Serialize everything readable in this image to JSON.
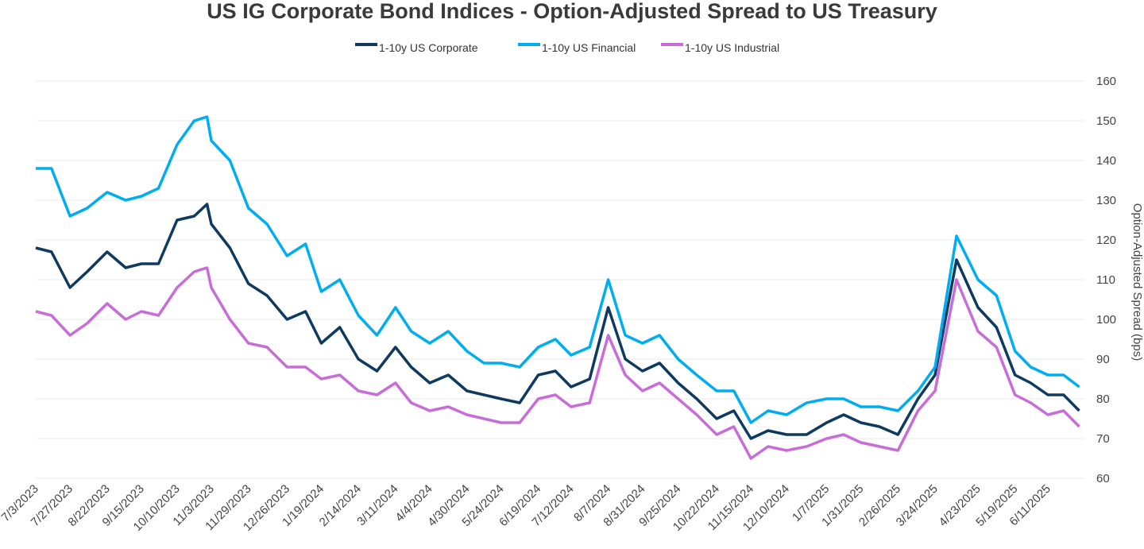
{
  "chart_data": {
    "type": "line",
    "title": "US IG Corporate Bond Indices - Option-Adjusted Spread to US Treasury",
    "xlabel": "",
    "ylabel": "Option-Adjusted Spread  (bps)",
    "ylim": [
      60,
      160
    ],
    "yticks": [
      60,
      70,
      80,
      90,
      100,
      110,
      120,
      130,
      140,
      150,
      160
    ],
    "y_axis_side": "right",
    "grid": true,
    "legend_position": "top",
    "xtick_labels": [
      "7/3/2023",
      "7/27/2023",
      "8/22/2023",
      "9/15/2023",
      "10/10/2023",
      "11/3/2023",
      "11/29/2023",
      "12/26/2023",
      "1/19/2024",
      "2/14/2024",
      "3/11/2024",
      "4/4/2024",
      "4/30/2024",
      "5/24/2024",
      "6/19/2024",
      "7/12/2024",
      "8/7/2024",
      "8/31/2024",
      "9/25/2024",
      "10/22/2024",
      "11/15/2024",
      "12/10/2024",
      "1/7/2025",
      "1/31/2025",
      "2/26/2025",
      "3/24/2025",
      "4/23/2025",
      "5/19/2025",
      "6/11/2025"
    ],
    "x": [
      "7/3/2023",
      "7/14/2023",
      "7/27/2023",
      "8/8/2023",
      "8/22/2023",
      "9/4/2023",
      "9/15/2023",
      "9/27/2023",
      "10/10/2023",
      "10/22/2023",
      "10/31/2023",
      "11/3/2023",
      "11/16/2023",
      "11/29/2023",
      "12/12/2023",
      "12/26/2023",
      "1/8/2024",
      "1/19/2024",
      "2/1/2024",
      "2/14/2024",
      "2/27/2024",
      "3/11/2024",
      "3/22/2024",
      "4/4/2024",
      "4/17/2024",
      "4/30/2024",
      "5/12/2024",
      "5/24/2024",
      "6/6/2024",
      "6/19/2024",
      "7/1/2024",
      "7/12/2024",
      "7/25/2024",
      "8/7/2024",
      "8/19/2024",
      "8/31/2024",
      "9/12/2024",
      "9/25/2024",
      "10/8/2024",
      "10/22/2024",
      "11/3/2024",
      "11/15/2024",
      "11/27/2024",
      "12/10/2024",
      "12/24/2024",
      "1/7/2025",
      "1/19/2025",
      "1/31/2025",
      "2/13/2025",
      "2/26/2025",
      "3/12/2025",
      "3/24/2025",
      "4/8/2025",
      "4/23/2025",
      "5/6/2025",
      "5/19/2025",
      "5/30/2025",
      "6/11/2025",
      "6/22/2025",
      "7/3/2025"
    ],
    "series": [
      {
        "name": "1-10y US Corporate",
        "color": "#0e3a60",
        "values": [
          118,
          117,
          108,
          112,
          117,
          113,
          114,
          114,
          125,
          126,
          129,
          124,
          118,
          109,
          106,
          100,
          102,
          94,
          98,
          90,
          87,
          93,
          88,
          84,
          86,
          82,
          81,
          80,
          79,
          86,
          87,
          83,
          85,
          103,
          90,
          87,
          89,
          84,
          80,
          75,
          77,
          70,
          72,
          71,
          71,
          74,
          76,
          74,
          73,
          71,
          80,
          86,
          115,
          103,
          98,
          86,
          84,
          81,
          81,
          77
        ]
      },
      {
        "name": "1-10y US Financial",
        "color": "#00aeef",
        "values": [
          138,
          138,
          126,
          128,
          132,
          130,
          131,
          133,
          144,
          150,
          151,
          145,
          140,
          128,
          124,
          116,
          119,
          107,
          110,
          101,
          96,
          103,
          97,
          94,
          97,
          92,
          89,
          89,
          88,
          93,
          95,
          91,
          93,
          110,
          96,
          94,
          96,
          90,
          86,
          82,
          82,
          74,
          77,
          76,
          79,
          80,
          80,
          78,
          78,
          77,
          82,
          88,
          121,
          110,
          106,
          92,
          88,
          86,
          86,
          83
        ]
      },
      {
        "name": "1-10y US Industrial",
        "color": "#c86dd7",
        "values": [
          102,
          101,
          96,
          99,
          104,
          100,
          102,
          101,
          108,
          112,
          113,
          108,
          100,
          94,
          93,
          88,
          88,
          85,
          86,
          82,
          81,
          84,
          79,
          77,
          78,
          76,
          75,
          74,
          74,
          80,
          81,
          78,
          79,
          96,
          86,
          82,
          84,
          80,
          76,
          71,
          73,
          65,
          68,
          67,
          68,
          70,
          71,
          69,
          68,
          67,
          77,
          82,
          110,
          97,
          93,
          81,
          79,
          76,
          77,
          73
        ]
      }
    ]
  }
}
